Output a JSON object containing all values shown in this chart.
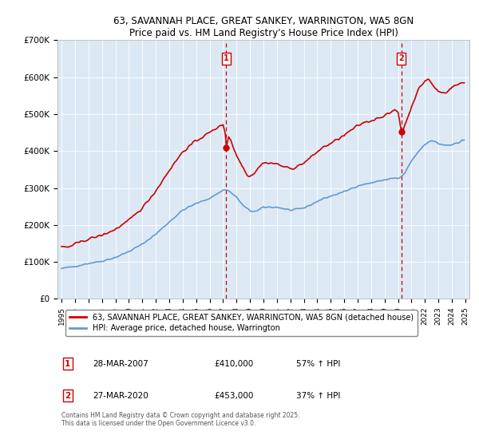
{
  "title1": "63, SAVANNAH PLACE, GREAT SANKEY, WARRINGTON, WA5 8GN",
  "title2": "Price paid vs. HM Land Registry's House Price Index (HPI)",
  "background_color": "#dce9f5",
  "red_color": "#cc0000",
  "blue_color": "#6699cc",
  "ylim": [
    0,
    700000
  ],
  "yticks": [
    0,
    100000,
    200000,
    300000,
    400000,
    500000,
    600000,
    700000
  ],
  "ytick_labels": [
    "£0",
    "£100K",
    "£200K",
    "£300K",
    "£400K",
    "£500K",
    "£600K",
    "£700K"
  ],
  "xlim_start": 1994.7,
  "xlim_end": 2025.3,
  "marker1_x": 2007.24,
  "marker1_y": 410000,
  "marker2_x": 2020.24,
  "marker2_y": 453000,
  "marker1_label": "1",
  "marker2_label": "2",
  "marker1_date": "28-MAR-2007",
  "marker1_price": "£410,000",
  "marker1_hpi": "57% ↑ HPI",
  "marker2_date": "27-MAR-2020",
  "marker2_price": "£453,000",
  "marker2_hpi": "37% ↑ HPI",
  "legend_line1": "63, SAVANNAH PLACE, GREAT SANKEY, WARRINGTON, WA5 8GN (detached house)",
  "legend_line2": "HPI: Average price, detached house, Warrington",
  "footnote": "Contains HM Land Registry data © Crown copyright and database right 2025.\nThis data is licensed under the Open Government Licence v3.0."
}
